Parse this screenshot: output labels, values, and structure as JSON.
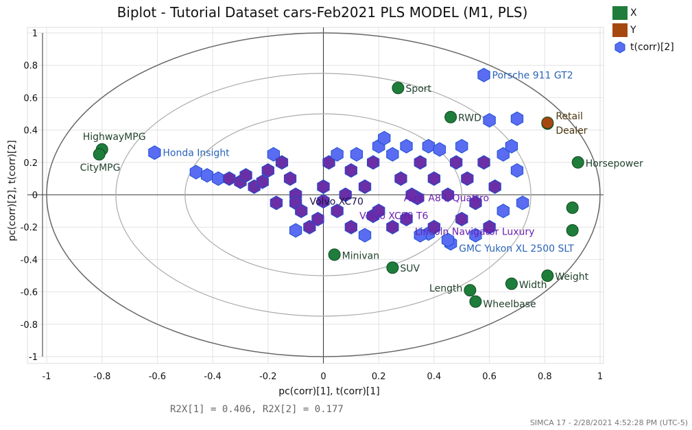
{
  "chart_data": {
    "type": "scatter",
    "title": "Biplot - Tutorial Dataset cars-Feb2021 PLS MODEL (M1, PLS)",
    "xlabel": "pc(corr)[1], t(corr)[1]",
    "ylabel": "pc(corr)[2], t(corr)[2]",
    "xlim": [
      -1,
      1
    ],
    "ylim": [
      -1,
      1
    ],
    "xticks": [
      "-1",
      "-0.8",
      "-0.6",
      "-0.4",
      "-0.2",
      "0",
      "0.2",
      "0.4",
      "0.6",
      "0.8",
      "1"
    ],
    "yticks": [
      "1",
      "0.8",
      "0.6",
      "0.4",
      "0.2",
      "0",
      "-0.2",
      "-0.4",
      "-0.6",
      "-0.8",
      "-1"
    ],
    "grid": true,
    "ellipses_radius": [
      1,
      0.75,
      0.5
    ],
    "legend_position": "top-right",
    "legend": [
      {
        "name": "X",
        "color": "#1e7d3a",
        "marker": "square"
      },
      {
        "name": "Y",
        "color": "#a5480f",
        "marker": "square"
      },
      {
        "name": "t(corr)[2]",
        "color": "#5a6cf2",
        "marker": "hexagon"
      }
    ],
    "series": [
      {
        "name": "X",
        "color": "#1e7d3a",
        "points": [
          {
            "label": "HighwayMPG",
            "x": -0.8,
            "y": 0.28
          },
          {
            "label": "CityMPG",
            "x": -0.81,
            "y": 0.25
          },
          {
            "label": "Sport",
            "x": 0.27,
            "y": 0.66
          },
          {
            "label": "RWD",
            "x": 0.46,
            "y": 0.48
          },
          {
            "label": "Minivan",
            "x": 0.04,
            "y": -0.37
          },
          {
            "label": "SUV",
            "x": 0.25,
            "y": -0.45
          },
          {
            "label": "Length",
            "x": 0.53,
            "y": -0.59
          },
          {
            "label": "Wheelbase",
            "x": 0.55,
            "y": -0.66
          },
          {
            "label": "Width",
            "x": 0.68,
            "y": -0.55
          },
          {
            "label": "Weight",
            "x": 0.81,
            "y": -0.5
          },
          {
            "label": "Horsepower",
            "x": 0.92,
            "y": 0.2
          },
          {
            "label": "",
            "x": 0.9,
            "y": -0.08
          },
          {
            "label": "",
            "x": 0.9,
            "y": -0.22
          }
        ]
      },
      {
        "name": "Y",
        "color": "#a5480f",
        "points": [
          {
            "label": "Retail",
            "x": 0.81,
            "y": 0.44
          },
          {
            "label": "Dealer",
            "x": 0.81,
            "y": 0.445
          }
        ]
      },
      {
        "name": "t(corr)[2]",
        "color": "#5a6cf2",
        "points": [
          {
            "label": "Porsche 911 GT2",
            "x": 0.58,
            "y": 0.74
          },
          {
            "label": "Honda Insight",
            "x": -0.61,
            "y": 0.26
          },
          {
            "label": "Volvo XC70",
            "x": 0.0,
            "y": -0.04
          },
          {
            "label": "Volvo XC90 T6",
            "x": 0.18,
            "y": -0.13
          },
          {
            "label": "Audi A8 L Quattro",
            "x": 0.34,
            "y": -0.02
          },
          {
            "label": "Lincoln Navigator Luxury",
            "x": 0.38,
            "y": -0.24
          },
          {
            "label": "GMC Yukon XL 2500 SLT",
            "x": 0.46,
            "y": -0.3
          },
          {
            "label": "",
            "x": -0.46,
            "y": 0.14
          },
          {
            "label": "",
            "x": -0.42,
            "y": 0.12
          },
          {
            "label": "",
            "x": -0.38,
            "y": 0.1
          },
          {
            "label": "",
            "x": -0.34,
            "y": 0.1
          },
          {
            "label": "",
            "x": -0.3,
            "y": 0.08
          },
          {
            "label": "",
            "x": -0.28,
            "y": 0.12
          },
          {
            "label": "",
            "x": -0.25,
            "y": 0.05
          },
          {
            "label": "",
            "x": -0.22,
            "y": 0.08
          },
          {
            "label": "",
            "x": -0.2,
            "y": 0.15
          },
          {
            "label": "",
            "x": -0.18,
            "y": 0.25
          },
          {
            "label": "",
            "x": -0.15,
            "y": 0.2
          },
          {
            "label": "",
            "x": -0.12,
            "y": 0.1
          },
          {
            "label": "",
            "x": -0.1,
            "y": 0.0
          },
          {
            "label": "",
            "x": -0.1,
            "y": -0.05
          },
          {
            "label": "",
            "x": -0.08,
            "y": -0.1
          },
          {
            "label": "",
            "x": -0.05,
            "y": -0.2
          },
          {
            "label": "",
            "x": -0.02,
            "y": -0.15
          },
          {
            "label": "",
            "x": 0.0,
            "y": 0.05
          },
          {
            "label": "",
            "x": 0.02,
            "y": 0.2
          },
          {
            "label": "",
            "x": 0.05,
            "y": 0.25
          },
          {
            "label": "",
            "x": 0.05,
            "y": -0.1
          },
          {
            "label": "",
            "x": 0.08,
            "y": 0.0
          },
          {
            "label": "",
            "x": 0.1,
            "y": 0.15
          },
          {
            "label": "",
            "x": 0.1,
            "y": -0.2
          },
          {
            "label": "",
            "x": 0.12,
            "y": 0.25
          },
          {
            "label": "",
            "x": 0.15,
            "y": 0.05
          },
          {
            "label": "",
            "x": 0.15,
            "y": -0.25
          },
          {
            "label": "",
            "x": 0.18,
            "y": 0.2
          },
          {
            "label": "",
            "x": 0.2,
            "y": -0.1
          },
          {
            "label": "",
            "x": 0.2,
            "y": 0.3
          },
          {
            "label": "",
            "x": 0.22,
            "y": 0.35
          },
          {
            "label": "",
            "x": 0.25,
            "y": 0.25
          },
          {
            "label": "",
            "x": 0.25,
            "y": -0.2
          },
          {
            "label": "",
            "x": 0.28,
            "y": 0.1
          },
          {
            "label": "",
            "x": 0.3,
            "y": 0.3
          },
          {
            "label": "",
            "x": 0.3,
            "y": -0.15
          },
          {
            "label": "",
            "x": 0.32,
            "y": 0.0
          },
          {
            "label": "",
            "x": 0.35,
            "y": 0.2
          },
          {
            "label": "",
            "x": 0.35,
            "y": -0.25
          },
          {
            "label": "",
            "x": 0.38,
            "y": 0.3
          },
          {
            "label": "",
            "x": 0.4,
            "y": 0.1
          },
          {
            "label": "",
            "x": 0.4,
            "y": -0.2
          },
          {
            "label": "",
            "x": 0.42,
            "y": 0.28
          },
          {
            "label": "",
            "x": 0.45,
            "y": 0.0
          },
          {
            "label": "",
            "x": 0.45,
            "y": -0.28
          },
          {
            "label": "",
            "x": 0.48,
            "y": 0.2
          },
          {
            "label": "",
            "x": 0.5,
            "y": -0.15
          },
          {
            "label": "",
            "x": 0.5,
            "y": 0.3
          },
          {
            "label": "",
            "x": 0.52,
            "y": 0.1
          },
          {
            "label": "",
            "x": 0.55,
            "y": -0.05
          },
          {
            "label": "",
            "x": 0.55,
            "y": -0.25
          },
          {
            "label": "",
            "x": 0.58,
            "y": 0.2
          },
          {
            "label": "",
            "x": 0.6,
            "y": 0.46
          },
          {
            "label": "",
            "x": 0.6,
            "y": -0.2
          },
          {
            "label": "",
            "x": 0.62,
            "y": 0.05
          },
          {
            "label": "",
            "x": 0.65,
            "y": 0.25
          },
          {
            "label": "",
            "x": 0.65,
            "y": -0.1
          },
          {
            "label": "",
            "x": 0.68,
            "y": 0.3
          },
          {
            "label": "",
            "x": 0.7,
            "y": 0.47
          },
          {
            "label": "",
            "x": 0.7,
            "y": 0.15
          },
          {
            "label": "",
            "x": 0.72,
            "y": -0.05
          },
          {
            "label": "",
            "x": -0.17,
            "y": -0.05
          },
          {
            "label": "",
            "x": -0.1,
            "y": -0.22
          }
        ]
      }
    ]
  },
  "stats": "R2X[1] = 0.406, R2X[2] = 0.177",
  "footer": "SIMCA 17 - 2/28/2021 4:52:28 PM (UTC-5)"
}
